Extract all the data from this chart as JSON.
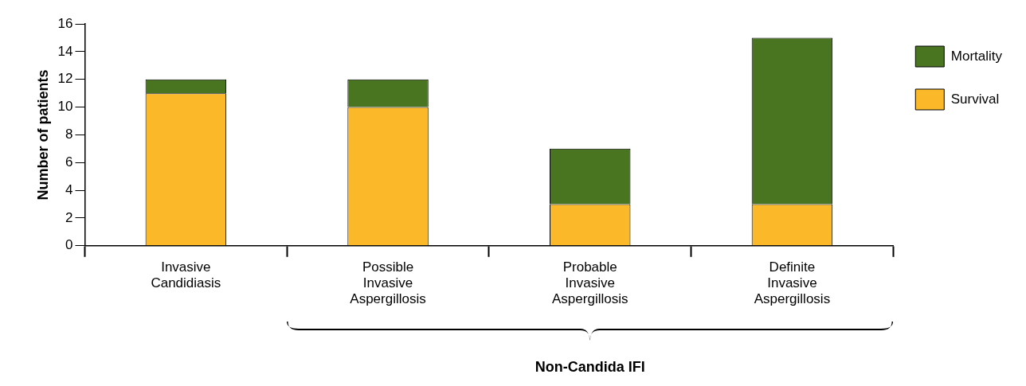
{
  "chart_data": {
    "type": "bar",
    "stacked": true,
    "categories": [
      "Invasive Candidiasis",
      "Possible Invasive Aspergillosis",
      "Probable Invasive Aspergillosis",
      "Definite Invasive Aspergillosis"
    ],
    "series": [
      {
        "name": "Survival",
        "color": "#fbb929",
        "values": [
          11,
          10,
          3,
          3
        ]
      },
      {
        "name": "Mortality",
        "color": "#4a7520",
        "values": [
          1,
          2,
          4,
          12
        ]
      }
    ],
    "ylabel": "Number of patients",
    "ylim": [
      0,
      16
    ],
    "yticks": [
      0,
      2,
      4,
      6,
      8,
      10,
      12,
      14,
      16
    ],
    "grid": false,
    "legend": "top right",
    "annotations": [
      "Non-Candida IFI"
    ]
  }
}
